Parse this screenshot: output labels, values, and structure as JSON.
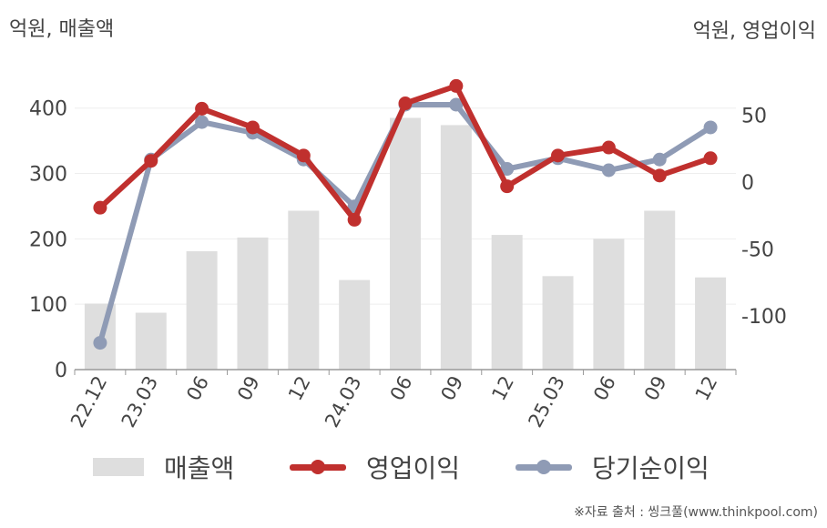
{
  "units": {
    "left": "억원, 매출액",
    "right": "억원, 영업이익"
  },
  "source": "※자료 출처 : 씽크풀(www.thinkpool.com)",
  "colors": {
    "bar": "#dedede",
    "op_line": "#c0302e",
    "net_line": "#8f9bb5",
    "grid": "#eeeeee",
    "axis": "#999999"
  },
  "chart_data": {
    "type": "bar+line",
    "categories": [
      "22.12",
      "23.03",
      "06",
      "09",
      "12",
      "24.03",
      "06",
      "09",
      "12",
      "25.03",
      "06",
      "09",
      "12"
    ],
    "left_axis": {
      "ylim": [
        0,
        440
      ],
      "ticks": [
        0,
        100,
        200,
        300,
        400
      ]
    },
    "right_axis": {
      "ylim": [
        -140,
        75
      ],
      "ticks": [
        -100,
        -50,
        0,
        50
      ]
    },
    "grid": true,
    "legend_position": "bottom",
    "series": [
      {
        "name": "매출액",
        "type": "bar",
        "axis": "left",
        "values": [
          101,
          87,
          181,
          202,
          243,
          137,
          385,
          374,
          206,
          143,
          200,
          243,
          141
        ]
      },
      {
        "name": "영업이익",
        "type": "line",
        "axis": "right",
        "values": [
          -19,
          16,
          55,
          41,
          20,
          -28,
          59,
          72,
          -3,
          20,
          26,
          5,
          18
        ]
      },
      {
        "name": "당기순이익",
        "type": "line",
        "axis": "right",
        "values": [
          -120,
          17,
          45,
          37,
          17,
          -18,
          58,
          58,
          10,
          18,
          9,
          17,
          41
        ]
      }
    ]
  }
}
